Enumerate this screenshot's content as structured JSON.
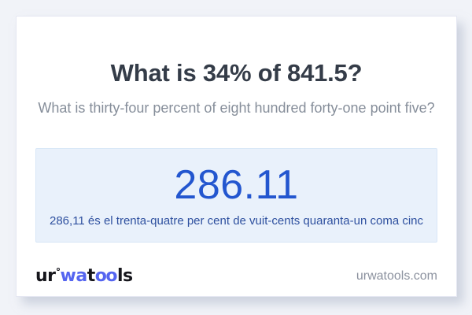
{
  "page": {
    "background_color": "#f1f3f8",
    "card_background": "#ffffff"
  },
  "card": {
    "title": "What is 34% of 841.5?",
    "subtitle": "What is thirty-four percent of eight hundred forty-one point five?"
  },
  "result": {
    "value": "286.11",
    "sentence": "286,11 és el trenta-quatre per cent de vuit-cents quaranta-un coma cinc",
    "value_color": "#2356cf",
    "sentence_color": "#2e509f",
    "box_background": "#e9f1fb"
  },
  "footer": {
    "logo": {
      "part_ur": "ur",
      "part_wa": "wa",
      "part_t": "t",
      "part_oo": "oo",
      "part_ls": "ls",
      "ring_icon": "ring-icon",
      "blue_color": "#5565f0",
      "dark_color": "#16161c"
    },
    "domain": "urwatools.com"
  }
}
